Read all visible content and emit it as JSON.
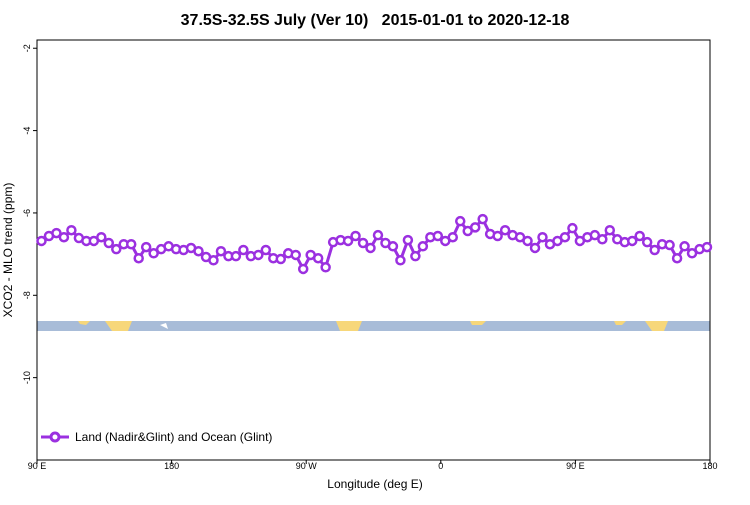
{
  "chart_data": {
    "type": "line",
    "title": "37.5S-32.5S July (Ver 10)   2015-01-01 to 2020-12-18",
    "x_label": "Longitude (deg E)",
    "y_label": "XCO2 - MLO trend (ppm)",
    "xlim": [
      90,
      540
    ],
    "ylim": [
      -12,
      -1.8
    ],
    "xticks": [
      {
        "value": 90,
        "label": "90 E"
      },
      {
        "value": 180,
        "label": "180"
      },
      {
        "value": 270,
        "label": "90 W"
      },
      {
        "value": 360,
        "label": "0"
      },
      {
        "value": 450,
        "label": "90 E"
      },
      {
        "value": 540,
        "label": "180"
      }
    ],
    "yticks": [
      -2,
      -4,
      -6,
      -8,
      -10
    ],
    "legend_position": "lower left",
    "x": [
      93,
      98,
      103,
      108,
      113,
      118,
      123,
      128,
      133,
      138,
      143,
      148,
      153,
      158,
      163,
      168,
      173,
      178,
      183,
      188,
      193,
      198,
      203,
      208,
      213,
      218,
      223,
      228,
      233,
      238,
      243,
      248,
      253,
      258,
      263,
      268,
      273,
      278,
      283,
      288,
      293,
      298,
      303,
      308,
      313,
      318,
      323,
      328,
      333,
      338,
      343,
      348,
      353,
      358,
      363,
      368,
      373,
      378,
      383,
      388,
      393,
      398,
      403,
      408,
      413,
      418,
      423,
      428,
      433,
      438,
      443,
      448,
      453,
      458,
      463,
      468,
      473,
      478,
      483,
      488,
      493,
      498,
      503,
      508,
      513,
      518,
      523,
      528,
      533,
      538
    ],
    "series": [
      {
        "name": "Land (Nadir&Glint) and Ocean (Glint)",
        "color": "#9b30e0",
        "values": [
          -6.68,
          -6.56,
          -6.49,
          -6.59,
          -6.42,
          -6.61,
          -6.68,
          -6.68,
          -6.59,
          -6.73,
          -6.88,
          -6.76,
          -6.76,
          -7.1,
          -6.83,
          -6.98,
          -6.88,
          -6.81,
          -6.88,
          -6.9,
          -6.85,
          -6.93,
          -7.07,
          -7.15,
          -6.93,
          -7.05,
          -7.05,
          -6.9,
          -7.05,
          -7.02,
          -6.9,
          -7.1,
          -7.12,
          -6.98,
          -7.02,
          -7.36,
          -7.02,
          -7.1,
          -7.32,
          -6.71,
          -6.66,
          -6.68,
          -6.56,
          -6.73,
          -6.85,
          -6.54,
          -6.73,
          -6.81,
          -7.15,
          -6.66,
          -7.05,
          -6.81,
          -6.59,
          -6.56,
          -6.68,
          -6.59,
          -6.2,
          -6.44,
          -6.35,
          -6.15,
          -6.51,
          -6.56,
          -6.42,
          -6.54,
          -6.59,
          -6.68,
          -6.85,
          -6.59,
          -6.76,
          -6.68,
          -6.59,
          -6.37,
          -6.68,
          -6.59,
          -6.54,
          -6.64,
          -6.42,
          -6.64,
          -6.71,
          -6.68,
          -6.56,
          -6.71,
          -6.9,
          -6.76,
          -6.78,
          -7.1,
          -6.81,
          -6.98,
          -6.88,
          -6.83
        ]
      }
    ]
  }
}
